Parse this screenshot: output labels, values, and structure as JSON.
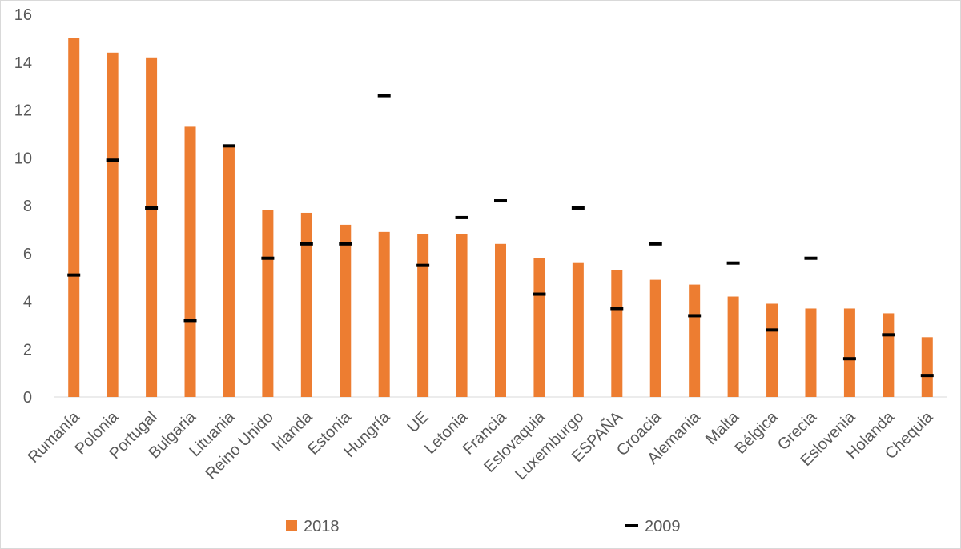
{
  "chart_data": {
    "type": "bar",
    "categories": [
      "Rumanía",
      "Polonia",
      "Portugal",
      "Bulgaria",
      "Lituania",
      "Reino Unido",
      "Irlanda",
      "Estonia",
      "Hungría",
      "UE",
      "Letonia",
      "Francia",
      "Eslovaquia",
      "Luxemburgo",
      "ESPAÑA",
      "Croacia",
      "Alemania",
      "Malta",
      "Bélgica",
      "Grecia",
      "Eslovenia",
      "Holanda",
      "Chequia"
    ],
    "series": [
      {
        "name": "2018",
        "kind": "bar",
        "color": "#ED7D31",
        "values": [
          15.0,
          14.4,
          14.2,
          11.3,
          10.5,
          7.8,
          7.7,
          7.2,
          6.9,
          6.8,
          6.8,
          6.4,
          5.8,
          5.6,
          5.3,
          4.9,
          4.7,
          4.2,
          3.9,
          3.7,
          3.7,
          3.5,
          2.5
        ]
      },
      {
        "name": "2009",
        "kind": "dash-marker",
        "color": "#000000",
        "values": [
          5.1,
          9.9,
          7.9,
          3.2,
          10.5,
          5.8,
          6.4,
          6.4,
          12.6,
          5.5,
          7.5,
          8.2,
          4.3,
          7.9,
          3.7,
          6.4,
          3.4,
          5.6,
          2.8,
          5.8,
          1.6,
          2.6,
          0.9
        ]
      }
    ],
    "ylim": [
      0,
      16
    ],
    "yticks": [
      0,
      2,
      4,
      6,
      8,
      10,
      12,
      14,
      16
    ],
    "grid": false,
    "legend_position": "bottom"
  }
}
